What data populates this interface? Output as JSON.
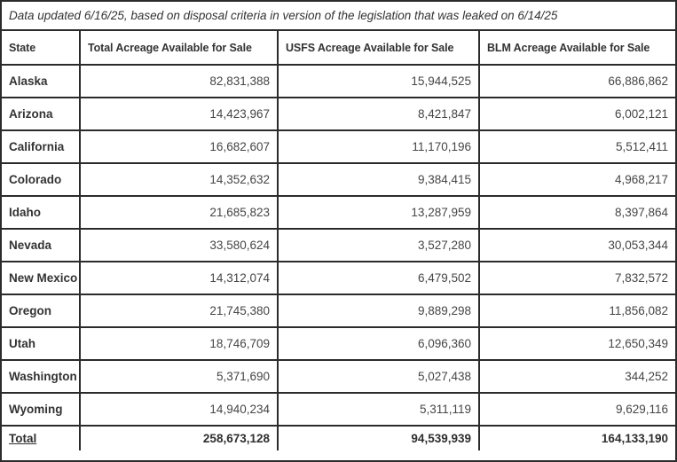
{
  "caption": "Data updated 6/16/25, based on disposal criteria in version of the legislation that was leaked on 6/14/25",
  "table": {
    "columns": [
      "State",
      "Total Acreage Available for Sale",
      "USFS Acreage Available for Sale",
      "BLM Acreage Available for Sale"
    ],
    "rows": [
      {
        "state": "Alaska",
        "total": "82,831,388",
        "usfs": "15,944,525",
        "blm": "66,886,862"
      },
      {
        "state": "Arizona",
        "total": "14,423,967",
        "usfs": "8,421,847",
        "blm": "6,002,121"
      },
      {
        "state": "California",
        "total": "16,682,607",
        "usfs": "11,170,196",
        "blm": "5,512,411"
      },
      {
        "state": "Colorado",
        "total": "14,352,632",
        "usfs": "9,384,415",
        "blm": "4,968,217"
      },
      {
        "state": "Idaho",
        "total": "21,685,823",
        "usfs": "13,287,959",
        "blm": "8,397,864"
      },
      {
        "state": "Nevada",
        "total": "33,580,624",
        "usfs": "3,527,280",
        "blm": "30,053,344"
      },
      {
        "state": "New Mexico",
        "total": "14,312,074",
        "usfs": "6,479,502",
        "blm": "7,832,572"
      },
      {
        "state": "Oregon",
        "total": "21,745,380",
        "usfs": "9,889,298",
        "blm": "11,856,082"
      },
      {
        "state": "Utah",
        "total": "18,746,709",
        "usfs": "6,096,360",
        "blm": "12,650,349"
      },
      {
        "state": "Washington",
        "total": "5,371,690",
        "usfs": "5,027,438",
        "blm": "344,252"
      },
      {
        "state": "Wyoming",
        "total": "14,940,234",
        "usfs": "5,311,119",
        "blm": "9,629,116"
      }
    ],
    "total_row": {
      "state": "Total",
      "total": "258,673,128",
      "usfs": "94,539,939",
      "blm": "164,133,190"
    }
  },
  "colors": {
    "border": "#2b2b2b",
    "text": "#3d3d3d",
    "bold_text": "#333333",
    "background": "#ffffff"
  },
  "chart_data": {
    "type": "table",
    "title": "Data updated 6/16/25, based on disposal criteria in version of the legislation that was leaked on 6/14/25",
    "columns": [
      "State",
      "Total Acreage Available for Sale",
      "USFS Acreage Available for Sale",
      "BLM Acreage Available for Sale"
    ],
    "categories": [
      "Alaska",
      "Arizona",
      "California",
      "Colorado",
      "Idaho",
      "Nevada",
      "New Mexico",
      "Oregon",
      "Utah",
      "Washington",
      "Wyoming",
      "Total"
    ],
    "series": [
      {
        "name": "Total Acreage Available for Sale",
        "values": [
          82831388,
          14423967,
          16682607,
          14352632,
          21685823,
          33580624,
          14312074,
          21745380,
          18746709,
          5371690,
          14940234,
          258673128
        ]
      },
      {
        "name": "USFS Acreage Available for Sale",
        "values": [
          15944525,
          8421847,
          11170196,
          9384415,
          13287959,
          3527280,
          6479502,
          9889298,
          6096360,
          5027438,
          5311119,
          94539939
        ]
      },
      {
        "name": "BLM Acreage Available for Sale",
        "values": [
          66886862,
          6002121,
          5512411,
          4968217,
          8397864,
          30053344,
          7832572,
          11856082,
          12650349,
          344252,
          9629116,
          164133190
        ]
      }
    ]
  }
}
